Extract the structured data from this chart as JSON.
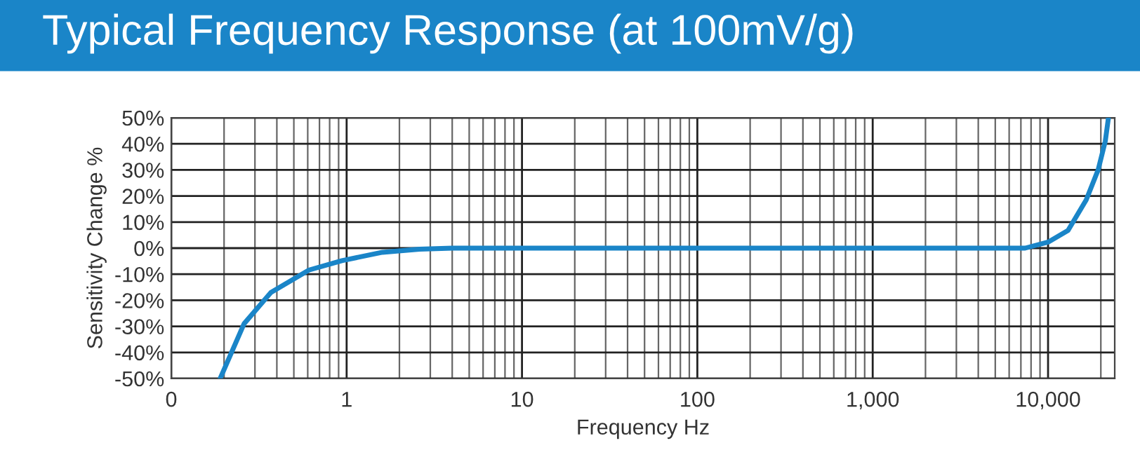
{
  "chart_data": {
    "type": "line",
    "title": "Typical Frequency Response (at 100mV/g)",
    "xlabel": "Frequency Hz",
    "ylabel": "Sensitivity Change %",
    "log": "x",
    "grid": true,
    "marker": "none",
    "line_style": "solid",
    "xlim": [
      0.1,
      24000
    ],
    "xticks": [
      {
        "value": 0.1,
        "label": "0"
      },
      1,
      10,
      100,
      {
        "value": 1000,
        "label": "1,000"
      },
      {
        "value": 10000,
        "label": "10,000"
      }
    ],
    "ylim": [
      -50,
      50
    ],
    "yticks": [
      {
        "value": -50,
        "label": "-50%"
      },
      {
        "value": -40,
        "label": "-40%"
      },
      {
        "value": -30,
        "label": "-30%"
      },
      {
        "value": -20,
        "label": "-20%"
      },
      {
        "value": -10,
        "label": "-10%"
      },
      {
        "value": 0,
        "label": "0%"
      },
      {
        "value": 10,
        "label": "10%"
      },
      {
        "value": 20,
        "label": "20%"
      },
      {
        "value": 30,
        "label": "30%"
      },
      {
        "value": 40,
        "label": "40%"
      },
      {
        "value": 50,
        "label": "50%"
      }
    ],
    "series": [
      {
        "color": "#1a85c8",
        "x": [
          0.19,
          0.26,
          0.37,
          0.61,
          0.94,
          1.6,
          2.6,
          4,
          100,
          1000,
          7400,
          10000,
          13000,
          16500,
          19300,
          21200,
          22100
        ],
        "values": [
          -50,
          -29,
          -17,
          -8.4,
          -4.8,
          -1.6,
          -0.4,
          0,
          0,
          0,
          0,
          2.3,
          6.8,
          18.5,
          30,
          41,
          50
        ]
      }
    ]
  }
}
